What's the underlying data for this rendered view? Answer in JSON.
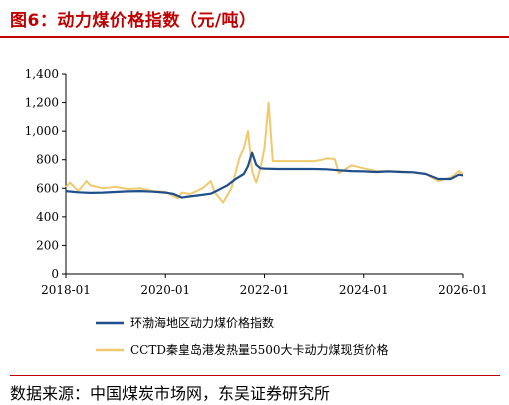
{
  "title": "图6：动力煤价格指数（元/吨）",
  "source": "数据来源：中国煤炭市场网，东吴证券研究所",
  "chart_data": {
    "type": "line",
    "title": "",
    "xlabel": "",
    "ylabel": "",
    "ylim": [
      0,
      1400
    ],
    "xlim": [
      "2018-01",
      "2026-01"
    ],
    "y_ticks": [
      0,
      200,
      400,
      600,
      800,
      1000,
      1200,
      1400
    ],
    "y_tick_labels": [
      "0",
      "200",
      "400",
      "600",
      "800",
      "1,000",
      "1,200",
      "1,400"
    ],
    "x_ticks": [
      "2018-01",
      "2020-01",
      "2022-01",
      "2024-01",
      "2026-01"
    ],
    "grid": false,
    "legend_position": "bottom",
    "series": [
      {
        "name": "环渤海地区动力煤价格指数",
        "color": "#1f4e8c",
        "x": [
          "2018-01",
          "2018-04",
          "2018-07",
          "2018-10",
          "2019-01",
          "2019-04",
          "2019-07",
          "2019-10",
          "2020-01",
          "2020-03",
          "2020-05",
          "2020-06",
          "2020-09",
          "2020-12",
          "2021-02",
          "2021-04",
          "2021-06",
          "2021-08",
          "2021-09",
          "2021-10",
          "2021-11",
          "2021-12",
          "2022-01",
          "2022-04",
          "2022-07",
          "2022-10",
          "2023-01",
          "2023-04",
          "2023-07",
          "2023-10",
          "2024-01",
          "2024-04",
          "2024-07",
          "2024-10",
          "2025-01",
          "2025-04",
          "2025-07",
          "2025-10",
          "2025-12",
          "2026-01"
        ],
        "values": [
          580,
          572,
          568,
          570,
          574,
          578,
          580,
          576,
          570,
          560,
          535,
          540,
          550,
          562,
          590,
          620,
          665,
          700,
          755,
          850,
          765,
          740,
          738,
          735,
          735,
          735,
          735,
          733,
          726,
          720,
          718,
          714,
          718,
          714,
          712,
          700,
          665,
          665,
          695,
          690
        ]
      },
      {
        "name": "CCTD秦皇岛港发热量5500大卡动力煤现货价格",
        "color": "#f0c96c",
        "x": [
          "2018-01",
          "2018-02",
          "2018-04",
          "2018-06",
          "2018-07",
          "2018-10",
          "2019-01",
          "2019-04",
          "2019-07",
          "2019-10",
          "2020-01",
          "2020-04",
          "2020-05",
          "2020-07",
          "2020-10",
          "2020-12",
          "2021-01",
          "2021-03",
          "2021-05",
          "2021-07",
          "2021-08",
          "2021-09",
          "2021-10",
          "2021-11",
          "2021-12",
          "2022-01",
          "2022-02",
          "2022-03",
          "2022-04",
          "2022-07",
          "2022-10",
          "2023-01",
          "2023-03",
          "2023-04",
          "2023-06",
          "2023-07",
          "2023-10",
          "2024-01",
          "2024-04",
          "2024-07",
          "2024-10",
          "2025-01",
          "2025-04",
          "2025-07",
          "2025-10",
          "2025-12",
          "2026-01"
        ],
        "values": [
          610,
          640,
          580,
          650,
          620,
          600,
          610,
          595,
          600,
          580,
          575,
          530,
          570,
          560,
          600,
          650,
          570,
          500,
          600,
          820,
          880,
          1000,
          720,
          640,
          740,
          880,
          1200,
          790,
          790,
          790,
          790,
          790,
          800,
          810,
          805,
          705,
          760,
          740,
          720,
          718,
          718,
          710,
          700,
          650,
          675,
          720,
          700
        ]
      }
    ]
  }
}
